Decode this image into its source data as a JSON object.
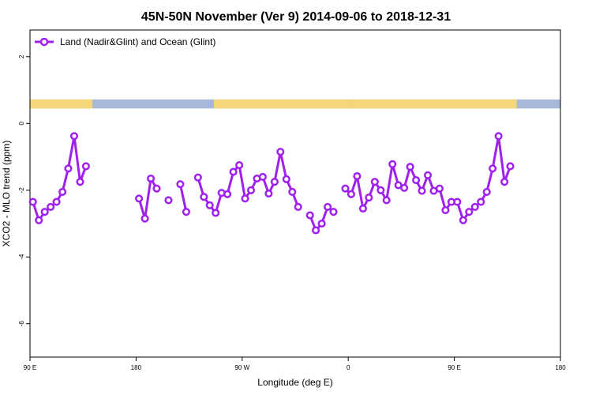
{
  "chart_data": {
    "type": "line",
    "title": "45N-50N November (Ver 9)   2014-09-06 to 2018-12-31",
    "xlabel": "Longitude (deg E)",
    "ylabel": "XCO2 - MLO trend (ppm)",
    "xlim": [
      90,
      450
    ],
    "ylim": [
      -7.0,
      2.8
    ],
    "x_ticks": [
      {
        "value": 90,
        "label": "90 E"
      },
      {
        "value": 180,
        "label": "180"
      },
      {
        "value": 270,
        "label": "90 W"
      },
      {
        "value": 360,
        "label": "0"
      },
      {
        "value": 450,
        "label": "90 E"
      },
      {
        "value": 540,
        "label": "180"
      }
    ],
    "y_ticks": [
      {
        "value": 2,
        "label": "2"
      },
      {
        "value": 0,
        "label": "0"
      },
      {
        "value": -2,
        "label": "-2"
      },
      {
        "value": -4,
        "label": "-4"
      },
      {
        "value": -6,
        "label": "-6"
      }
    ],
    "grid": false,
    "legend_position": "top-left",
    "series_color": "#a020f0",
    "land_color": "#f5d77a",
    "ocean_color": "#a8b8d8",
    "series": [
      {
        "name": "Land (Nadir&Glint) and Ocean (Glint)",
        "segments": [
          [
            [
              92.5,
              -2.35
            ],
            [
              97.5,
              -2.9
            ],
            [
              102.5,
              -2.65
            ],
            [
              107.5,
              -2.5
            ],
            [
              112.5,
              -2.35
            ],
            [
              117.5,
              -2.05
            ],
            [
              122.5,
              -1.35
            ],
            [
              127.5,
              -0.38
            ],
            [
              132.5,
              -1.75
            ],
            [
              137.5,
              -1.28
            ]
          ],
          [
            [
              182.5,
              -2.25
            ],
            [
              187.5,
              -2.85
            ],
            [
              192.5,
              -1.65
            ],
            [
              197.5,
              -1.95
            ]
          ],
          [
            [
              207.5,
              -2.3
            ]
          ],
          [
            [
              217.5,
              -1.82
            ],
            [
              222.5,
              -2.65
            ]
          ],
          [
            [
              232.5,
              -1.62
            ],
            [
              237.5,
              -2.2
            ],
            [
              242.5,
              -2.45
            ],
            [
              247.5,
              -2.68
            ],
            [
              252.5,
              -2.08
            ],
            [
              257.5,
              -2.12
            ],
            [
              262.5,
              -1.45
            ],
            [
              267.5,
              -1.25
            ],
            [
              272.5,
              -2.25
            ],
            [
              277.5,
              -2.0
            ],
            [
              282.5,
              -1.65
            ],
            [
              287.5,
              -1.6
            ],
            [
              292.5,
              -2.1
            ],
            [
              297.5,
              -1.75
            ],
            [
              302.5,
              -0.85
            ],
            [
              307.5,
              -1.67
            ],
            [
              312.5,
              -2.05
            ],
            [
              317.5,
              -2.5
            ]
          ],
          [
            [
              327.5,
              -2.75
            ],
            [
              332.5,
              -3.2
            ],
            [
              337.5,
              -3.0
            ],
            [
              342.5,
              -2.5
            ],
            [
              347.5,
              -2.65
            ]
          ],
          [
            [
              357.5,
              -1.95
            ],
            [
              362.5,
              -2.12
            ],
            [
              367.5,
              -1.58
            ],
            [
              372.5,
              -2.55
            ],
            [
              377.5,
              -2.22
            ],
            [
              382.5,
              -1.75
            ],
            [
              387.5,
              -2.0
            ],
            [
              392.5,
              -2.3
            ],
            [
              397.5,
              -1.22
            ],
            [
              402.5,
              -1.85
            ],
            [
              407.5,
              -1.93
            ],
            [
              412.5,
              -1.3
            ],
            [
              417.5,
              -1.7
            ],
            [
              422.5,
              -2.02
            ],
            [
              427.5,
              -1.55
            ],
            [
              432.5,
              -2.02
            ],
            [
              437.5,
              -1.95
            ],
            [
              442.5,
              -2.6
            ],
            [
              447.5,
              -2.35
            ],
            [
              452.5,
              -2.35
            ],
            [
              457.5,
              -2.9
            ],
            [
              462.5,
              -2.65
            ],
            [
              467.5,
              -2.5
            ],
            [
              472.5,
              -2.35
            ],
            [
              477.5,
              -2.05
            ],
            [
              482.5,
              -1.35
            ],
            [
              487.5,
              -0.38
            ],
            [
              492.5,
              -1.75
            ],
            [
              497.5,
              -1.28
            ]
          ]
        ]
      }
    ],
    "map_strip": {
      "y_range": [
        0.45,
        0.72
      ],
      "land_spans": [
        [
          90,
          143
        ],
        [
          246,
          360
        ],
        [
          360,
          503
        ]
      ]
    }
  }
}
